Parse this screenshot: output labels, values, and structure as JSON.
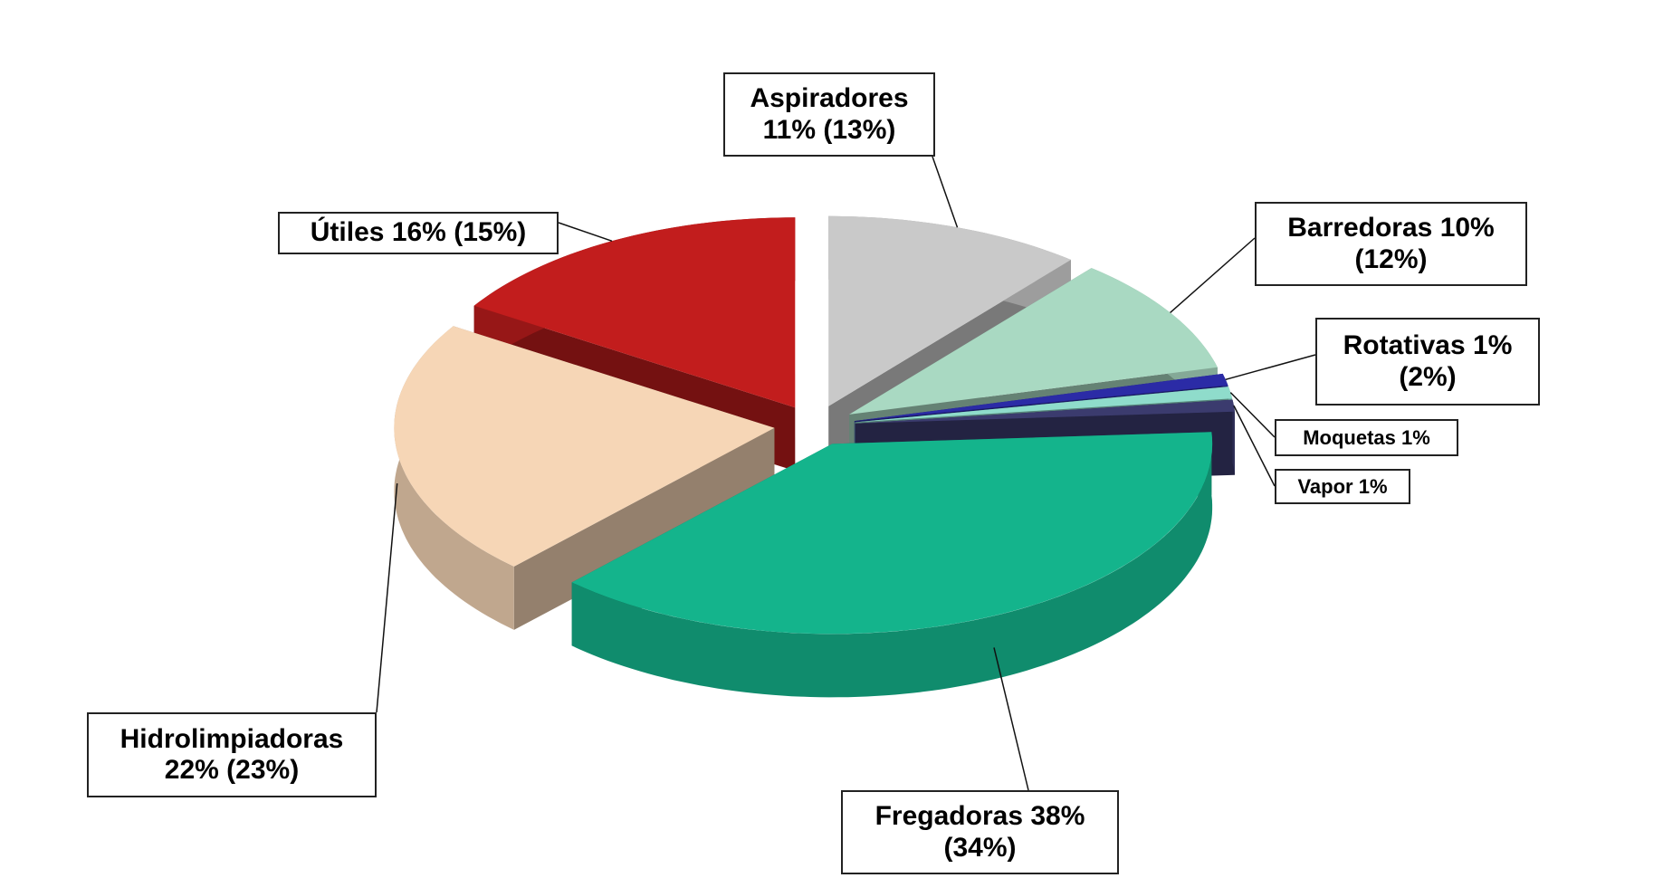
{
  "chart_data": {
    "type": "pie",
    "categories": [
      "Aspiradores",
      "Barredoras",
      "Rotativas",
      "Moquetas",
      "Vapor",
      "Fregadoras",
      "Hidrolimpiadoras",
      "Útiles"
    ],
    "values": [
      11,
      10,
      1,
      1,
      1,
      38,
      22,
      16
    ],
    "value_labels": [
      "11%",
      "10%",
      "1%",
      "1%",
      "1%",
      "38%",
      "22%",
      "16%"
    ],
    "prior_values": [
      13,
      12,
      2,
      null,
      null,
      34,
      23,
      15
    ],
    "prior_value_labels": [
      "(13%)",
      "(12%)",
      "(2%)",
      null,
      null,
      "(34%)",
      "(23%)",
      "(15%)"
    ],
    "colors": [
      "#c9c9c9",
      "#a9d9c2",
      "#2b2ba6",
      "#8fdccb",
      "#3b3b6e",
      "#14b48c",
      "#f6d6b6",
      "#c21d1d"
    ]
  }
}
